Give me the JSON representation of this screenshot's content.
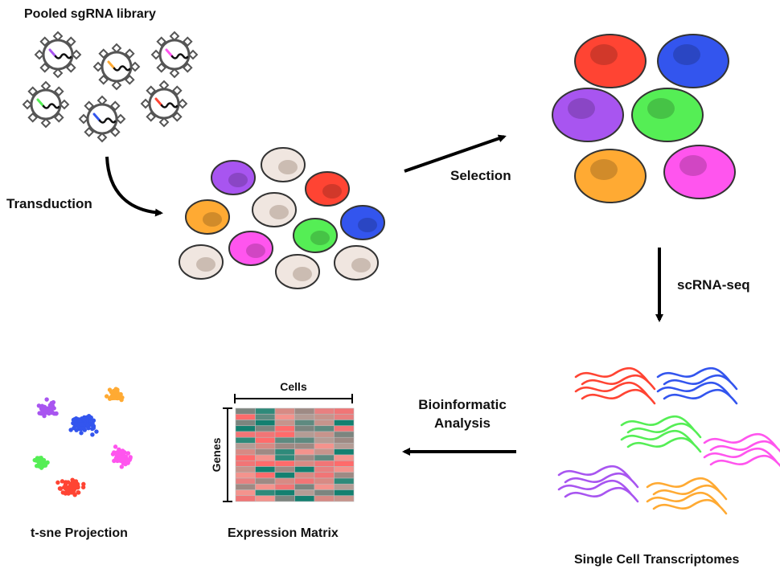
{
  "labels": {
    "library": "Pooled sgRNA library",
    "transduction": "Transduction",
    "selection": "Selection",
    "scrnaseq": "scRNA-seq",
    "bioinformatic_1": "Bioinformatic",
    "bioinformatic_2": "Analysis",
    "cells_axis": "Cells",
    "genes_axis": "Genes",
    "tsne": "t-sne Projection",
    "matrix": "Expression Matrix",
    "transcriptomes": "Single Cell Transcriptomes"
  },
  "colors": {
    "red": "#ff4433",
    "blue": "#3355ee",
    "purple": "#a855f0",
    "green": "#55ee55",
    "orange": "#ffaa33",
    "pink": "#ff55ee",
    "untreated": "#f0e6e0",
    "virus": "#555555"
  },
  "icons": {
    "virus": "virus-particle-icon",
    "cell": "cell-icon",
    "arrow": "arrow-icon",
    "transcript": "mrna-strand-icon",
    "scatter_point": "scatter-point-icon"
  }
}
